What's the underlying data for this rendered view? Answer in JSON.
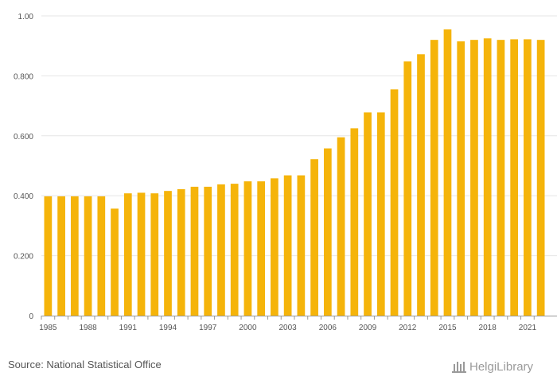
{
  "chart_data": {
    "type": "bar",
    "categories": [
      "1985",
      "1986",
      "1987",
      "1988",
      "1989",
      "1990",
      "1991",
      "1992",
      "1993",
      "1994",
      "1995",
      "1996",
      "1997",
      "1998",
      "1999",
      "2000",
      "2001",
      "2002",
      "2003",
      "2004",
      "2005",
      "2006",
      "2007",
      "2008",
      "2009",
      "2010",
      "2011",
      "2012",
      "2013",
      "2014",
      "2015",
      "2016",
      "2017",
      "2018",
      "2019",
      "2020",
      "2021",
      "2022"
    ],
    "values": [
      0.398,
      0.398,
      0.398,
      0.398,
      0.398,
      0.357,
      0.408,
      0.41,
      0.408,
      0.416,
      0.422,
      0.43,
      0.43,
      0.438,
      0.44,
      0.448,
      0.448,
      0.458,
      0.468,
      0.468,
      0.522,
      0.558,
      0.595,
      0.625,
      0.678,
      0.678,
      0.755,
      0.848,
      0.872,
      0.92,
      0.955,
      0.915,
      0.92,
      0.925,
      0.92,
      0.922,
      0.922,
      0.92
    ],
    "x_tick_labels": [
      "1985",
      "1988",
      "1991",
      "1994",
      "1997",
      "2000",
      "2003",
      "2006",
      "2009",
      "2012",
      "2015",
      "2018",
      "2021"
    ],
    "y_ticks": [
      {
        "value": 0,
        "label": "0"
      },
      {
        "value": 0.2,
        "label": "0.200"
      },
      {
        "value": 0.4,
        "label": "0.400"
      },
      {
        "value": 0.6,
        "label": "0.600"
      },
      {
        "value": 0.8,
        "label": "0.800"
      },
      {
        "value": 1.0,
        "label": "1.00"
      }
    ],
    "ylim": [
      0,
      1.0
    ],
    "title": "",
    "xlabel": "",
    "ylabel": "",
    "grid": true,
    "bar_color": "#f5b40a"
  },
  "footer": {
    "source": "Source: National Statistical Office",
    "brand": "HelgiLibrary"
  }
}
